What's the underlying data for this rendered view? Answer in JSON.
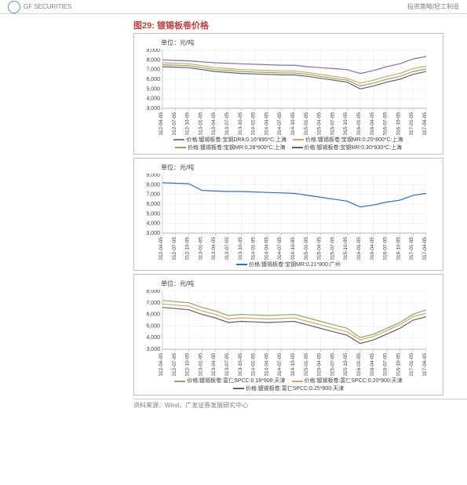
{
  "header": {
    "logo_text": "GF SECURITIES",
    "right_text": "投资策略|轻工制造"
  },
  "figure_label": "图29: 镀锡板卷价格",
  "source_label": "资料来源：Wind，广发证券发展研究中心",
  "x_labels": [
    "2012-04-05",
    "2012-07-05",
    "2012-10-05",
    "2013-01-05",
    "2013-04-05",
    "2013-07-05",
    "2013-10-05",
    "2014-01-05",
    "2014-04-05",
    "2014-07-05",
    "2014-10-05",
    "2015-01-05",
    "2015-04-05",
    "2015-07-05",
    "2015-10-05",
    "2016-01-05",
    "2016-04-05",
    "2016-07-05",
    "2016-10-05",
    "2017-01-05",
    "2017-04-05"
  ],
  "charts": [
    {
      "unit": "单位：元/吨",
      "ylim": [
        3000,
        9000
      ],
      "ytick_step": 1000,
      "grid_color": "#e8e8e8",
      "background_color": "#ffffff",
      "legend_rows": [
        [
          {
            "label": "价格:镀锡板卷:宝钢DR8:0.16*895*C:上海",
            "color": "#8b6bb0"
          },
          {
            "label": "价格:镀锡板卷:宝钢MR:0.25*800*C:上海",
            "color": "#d9a45b"
          }
        ],
        [
          {
            "label": "价格:镀锡板卷:宝钢MR:0.28*800*C:上海",
            "color": "#8aa86f"
          },
          {
            "label": "价格:镀锡板卷:宝钢MR:0.30*930*C:上海",
            "color": "#606060"
          }
        ]
      ],
      "series": [
        {
          "color": "#8b6bb0",
          "values": [
            8000,
            7950,
            7900,
            7800,
            7700,
            7650,
            7600,
            7550,
            7500,
            7450,
            7450,
            7300,
            7200,
            7100,
            7000,
            6600,
            6900,
            7300,
            7600,
            8100,
            8350
          ]
        },
        {
          "color": "#d9a45b",
          "values": [
            7700,
            7650,
            7600,
            7400,
            7200,
            7100,
            7000,
            6950,
            6900,
            6850,
            6850,
            6700,
            6500,
            6300,
            6100,
            5600,
            5900,
            6300,
            6600,
            7100,
            7350
          ]
        },
        {
          "color": "#8aa86f",
          "values": [
            7500,
            7450,
            7400,
            7200,
            7000,
            6900,
            6800,
            6750,
            6700,
            6650,
            6650,
            6500,
            6300,
            6100,
            5900,
            5300,
            5600,
            6000,
            6300,
            6800,
            7050
          ]
        },
        {
          "color": "#606060",
          "values": [
            7300,
            7250,
            7200,
            7000,
            6800,
            6700,
            6600,
            6550,
            6500,
            6450,
            6450,
            6300,
            6100,
            5900,
            5700,
            5000,
            5300,
            5700,
            6000,
            6500,
            6800
          ]
        }
      ]
    },
    {
      "unit": "单位：元/吨",
      "ylim": [
        3000,
        9000
      ],
      "ytick_step": 1000,
      "grid_color": "#e8e8e8",
      "background_color": "#ffffff",
      "legend_rows": [
        [
          {
            "label": "价格:镀锡板卷:宝钢MR:0.21*800:广州",
            "color": "#2e6fb4"
          }
        ]
      ],
      "series": [
        {
          "color": "#2e6fb4",
          "values": [
            8200,
            8150,
            8100,
            7400,
            7350,
            7300,
            7300,
            7250,
            7200,
            7150,
            7100,
            6900,
            6700,
            6500,
            6300,
            5700,
            5900,
            6200,
            6400,
            6900,
            7100
          ]
        }
      ]
    },
    {
      "unit": "单位：元/吨",
      "ylim": [
        3000,
        8000
      ],
      "ytick_step": 1000,
      "grid_color": "#e8e8e8",
      "background_color": "#ffffff",
      "legend_rows": [
        [
          {
            "label": "价格:镀锡板卷:富仁SPCC:0.18*900:天津",
            "color": "#8aa86f"
          },
          {
            "label": "价格:镀锡板卷:富仁SPCC:0.20*900:天津",
            "color": "#d9a45b"
          }
        ],
        [
          {
            "label": "价格:镀锡板卷:富仁SPCC:0.25*900:天津",
            "color": "#606060"
          }
        ]
      ],
      "series": [
        {
          "color": "#8aa86f",
          "values": [
            7200,
            7100,
            7000,
            6600,
            6300,
            5900,
            6000,
            5950,
            5900,
            5950,
            6000,
            5700,
            5400,
            5100,
            4800,
            4000,
            4300,
            4800,
            5300,
            6000,
            6400
          ]
        },
        {
          "color": "#d9a45b",
          "values": [
            6900,
            6800,
            6700,
            6300,
            6000,
            5600,
            5700,
            5650,
            5600,
            5650,
            5700,
            5400,
            5100,
            4800,
            4500,
            3800,
            4100,
            4600,
            5100,
            5800,
            6100
          ]
        },
        {
          "color": "#606060",
          "values": [
            6600,
            6500,
            6400,
            6000,
            5700,
            5300,
            5400,
            5350,
            5300,
            5350,
            5400,
            5100,
            4800,
            4500,
            4200,
            3500,
            3800,
            4300,
            4800,
            5500,
            5800
          ]
        }
      ]
    }
  ]
}
